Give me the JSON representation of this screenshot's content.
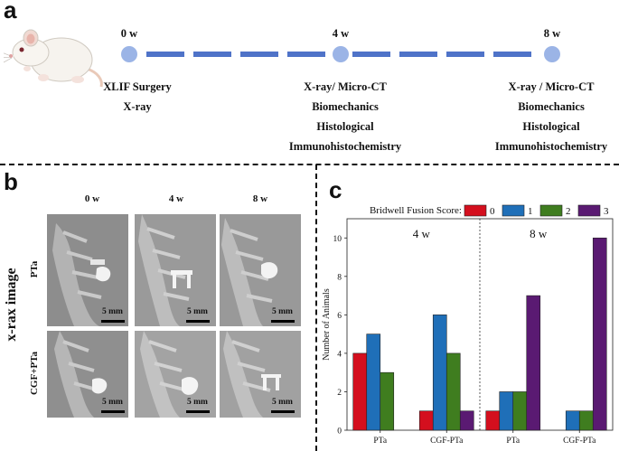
{
  "panel_a": {
    "letter": "a",
    "timeline": [
      {
        "week": "0 w",
        "events": [
          "XLIF Surgery",
          "X-ray"
        ]
      },
      {
        "week": "4 w",
        "events": [
          "X-ray/ Micro-CT",
          "Biomechanics",
          "Histological",
          "Immunohistochemistry"
        ]
      },
      {
        "week": "8 w",
        "events": [
          "X-ray / Micro-CT",
          "Biomechanics",
          "Histological",
          "Immunohistochemistry"
        ]
      }
    ],
    "colors": {
      "node": "#9bb4e6",
      "dash": "#4f73c8"
    }
  },
  "panel_b": {
    "letter": "b",
    "side_title": "x-rax image",
    "columns": [
      "0 w",
      "4 w",
      "8 w"
    ],
    "rows": [
      "PTa",
      "CGF+PTa"
    ],
    "scale_label": "5 mm"
  },
  "panel_c": {
    "letter": "c"
  },
  "chart_data": {
    "type": "bar",
    "legend_title": "Bridwell Fusion Score:",
    "legend_position": "top",
    "ylabel": "Number of Animals",
    "xlabel": "",
    "ylim": [
      0,
      11
    ],
    "yticks": [
      0,
      2,
      4,
      6,
      8,
      10
    ],
    "categories": [
      "PTa",
      "CGF-PTa",
      "PTa",
      "CGF-PTa"
    ],
    "panels": [
      {
        "label": "4 w",
        "categories": [
          0,
          1
        ]
      },
      {
        "label": "8 w",
        "categories": [
          2,
          3
        ]
      }
    ],
    "series": [
      {
        "name": "0",
        "color": "#d40f1e",
        "values": [
          4,
          1,
          1,
          0
        ]
      },
      {
        "name": "1",
        "color": "#1f6fb8",
        "values": [
          5,
          6,
          2,
          1
        ]
      },
      {
        "name": "2",
        "color": "#3f7d1f",
        "values": [
          3,
          4,
          2,
          1
        ]
      },
      {
        "name": "3",
        "color": "#5a1a72",
        "values": [
          0,
          1,
          7,
          10
        ]
      }
    ]
  }
}
